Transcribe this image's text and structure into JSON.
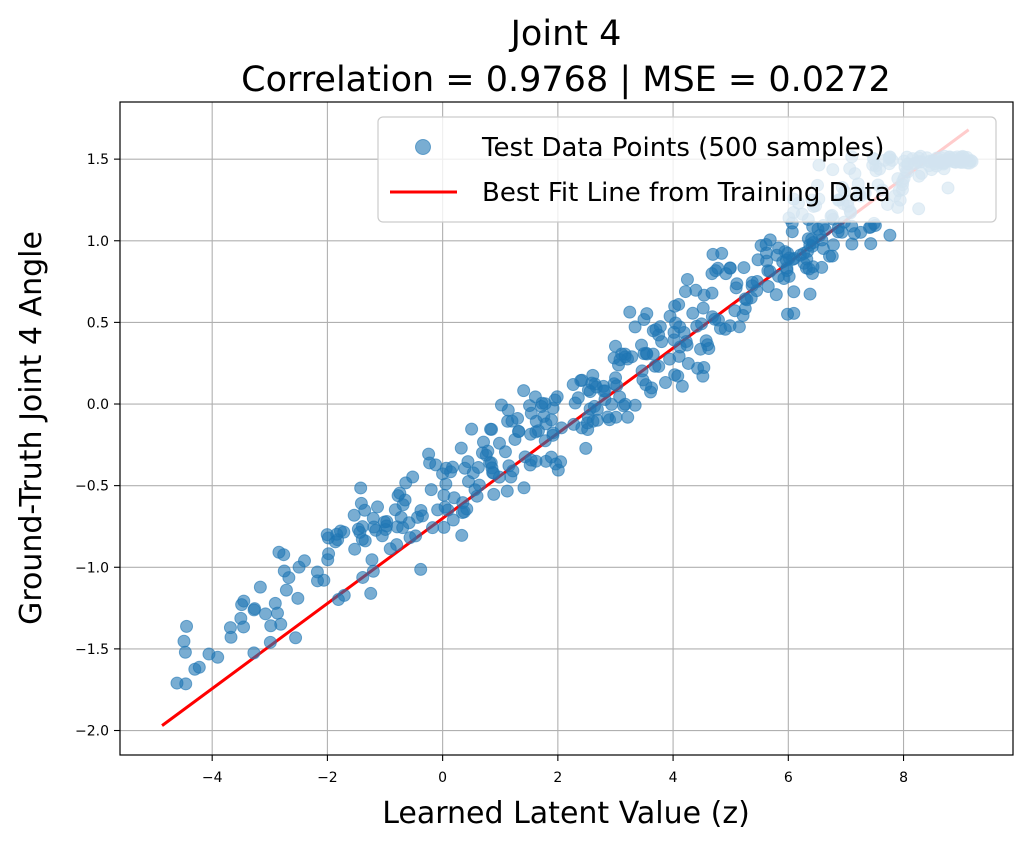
{
  "chart_data": {
    "type": "scatter",
    "title_line1": "Joint 4",
    "title_line2": "Correlation = 0.9768 | MSE = 0.0272",
    "xlabel": "Learned Latent Value (z)",
    "ylabel": "Ground-Truth Joint 4 Angle",
    "xlim": [
      -5.6,
      9.9
    ],
    "ylim": [
      -2.15,
      1.85
    ],
    "x_ticks": [
      -4,
      -2,
      0,
      2,
      4,
      6,
      8
    ],
    "y_ticks": [
      -2.0,
      -1.5,
      -1.0,
      -0.5,
      0.0,
      0.5,
      1.0,
      1.5
    ],
    "x_tick_labels": [
      "−4",
      "−2",
      "0",
      "2",
      "4",
      "6",
      "8"
    ],
    "y_tick_labels": [
      "−2.0",
      "−1.5",
      "−1.0",
      "−0.5",
      "0.0",
      "0.5",
      "1.0",
      "1.5"
    ],
    "grid": true,
    "legend_position": "top-right",
    "series": [
      {
        "name": "Test Data Points (500 samples)",
        "kind": "scatter",
        "color": "#1f77b4",
        "alpha": 0.6,
        "n": 500,
        "seed": 42,
        "x_range": [
          -4.9,
          9.2
        ],
        "model_slope": 0.2647,
        "model_intercept": -0.672,
        "noise_sd": 0.16,
        "curve": 0.12,
        "clip_max": 1.52
      },
      {
        "name": "Best Fit Line from Training Data",
        "kind": "line",
        "color": "#ff0000",
        "x": [
          -4.87,
          9.13
        ],
        "y": [
          -1.97,
          1.68
        ]
      }
    ]
  }
}
